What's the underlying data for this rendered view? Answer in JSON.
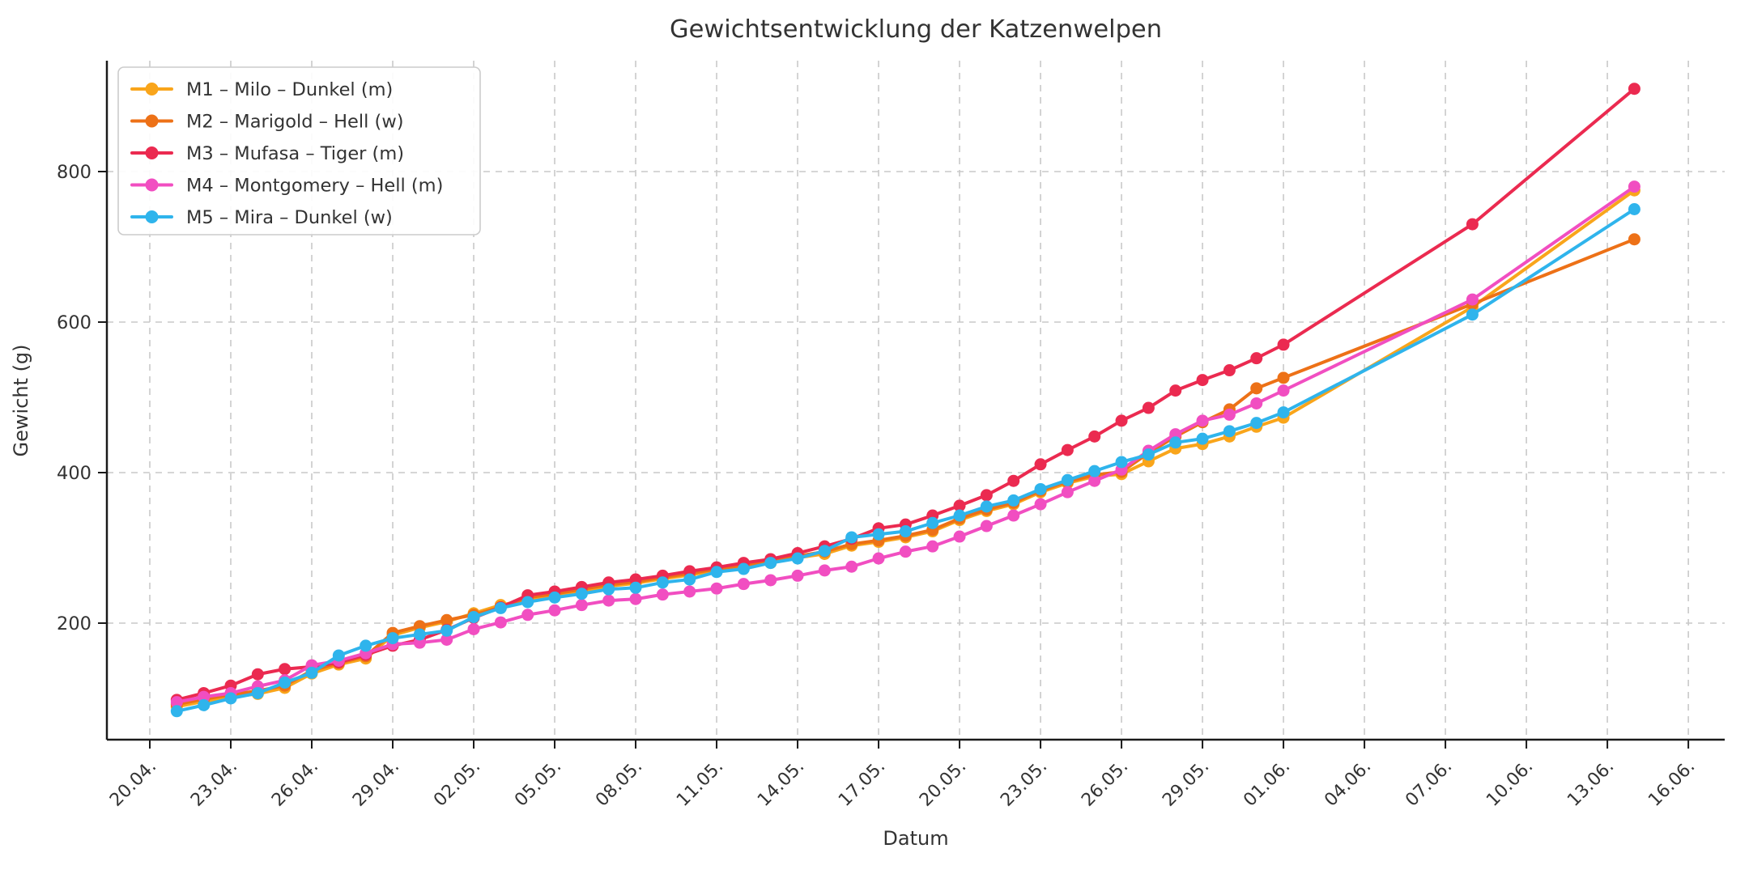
{
  "title": "Gewichtsentwicklung der Katzenwelpen",
  "xlabel": "Datum",
  "ylabel": "Gewicht (g)",
  "colors": {
    "background": "#ffffff",
    "grid": "#c9c9c9",
    "spine": "#1a1a1a",
    "tick_label": "#333333",
    "title": "#333333",
    "legend_border": "#cccccc",
    "legend_bg": "#ffffff"
  },
  "chart_data": {
    "type": "line",
    "title": "Gewichtsentwicklung der Katzenwelpen",
    "xlabel": "Datum",
    "ylabel": "Gewicht (g)",
    "grid": true,
    "grid_style": "dashed",
    "legend_position": "upper-left",
    "x_tick_labels": [
      "20.04.",
      "23.04.",
      "26.04.",
      "29.04.",
      "02.05.",
      "05.05.",
      "08.05.",
      "11.05.",
      "14.05.",
      "17.05.",
      "20.05.",
      "23.05.",
      "26.05.",
      "29.05.",
      "01.06.",
      "04.06.",
      "07.06.",
      "10.06.",
      "13.06.",
      "16.06."
    ],
    "x_tick_days": [
      0,
      3,
      6,
      9,
      12,
      15,
      18,
      21,
      24,
      27,
      30,
      33,
      36,
      39,
      42,
      45,
      48,
      51,
      54,
      57
    ],
    "y_ticks": [
      200,
      400,
      600,
      800
    ],
    "ylim": [
      45,
      947
    ],
    "xlim_days": [
      -1.6,
      58.4
    ],
    "point_dates": [
      "21.04.",
      "22.04.",
      "23.04.",
      "24.04.",
      "25.04.",
      "26.04.",
      "27.04.",
      "28.04.",
      "29.04.",
      "30.04.",
      "01.05.",
      "02.05.",
      "03.05.",
      "04.05.",
      "05.05.",
      "06.05.",
      "07.05.",
      "08.05.",
      "09.05.",
      "10.05.",
      "11.05.",
      "12.05.",
      "13.05.",
      "14.05.",
      "15.05.",
      "16.05.",
      "17.05.",
      "18.05.",
      "19.05.",
      "20.05.",
      "21.05.",
      "22.05.",
      "23.05.",
      "24.05.",
      "25.05.",
      "26.05.",
      "27.05.",
      "28.05.",
      "29.05.",
      "30.05.",
      "31.05.",
      "01.06.",
      "08.06.",
      "14.06."
    ],
    "point_day_offsets": [
      1,
      2,
      3,
      4,
      5,
      6,
      7,
      8,
      9,
      10,
      11,
      12,
      13,
      14,
      15,
      16,
      17,
      18,
      19,
      20,
      21,
      22,
      23,
      24,
      25,
      26,
      27,
      28,
      29,
      30,
      31,
      32,
      33,
      34,
      35,
      36,
      37,
      38,
      39,
      40,
      41,
      42,
      49,
      55
    ],
    "series": [
      {
        "id": "M1",
        "name": "M1 – Milo – Dunkel (m)",
        "color": "#F9A51B",
        "values": [
          89,
          96,
          102,
          106,
          114,
          133,
          145,
          153,
          184,
          194,
          202,
          213,
          224,
          231,
          237,
          243,
          249,
          253,
          259,
          264,
          270,
          275,
          280,
          287,
          292,
          303,
          308,
          314,
          322,
          337,
          349,
          358,
          374,
          386,
          395,
          398,
          415,
          432,
          438,
          448,
          461,
          473,
          620,
          775
        ]
      },
      {
        "id": "M2",
        "name": "M2 – Marigold – Hell (w)",
        "color": "#ED7117",
        "values": [
          92,
          99,
          105,
          110,
          117,
          137,
          147,
          156,
          187,
          196,
          204,
          211,
          221,
          234,
          239,
          245,
          251,
          255,
          261,
          266,
          272,
          277,
          282,
          289,
          295,
          305,
          310,
          316,
          324,
          339,
          351,
          360,
          376,
          388,
          397,
          401,
          426,
          448,
          467,
          484,
          512,
          526,
          624,
          710
        ]
      },
      {
        "id": "M3",
        "name": "M3 – Mufasa – Tiger (m)",
        "color": "#EB2A50",
        "values": [
          98,
          107,
          117,
          132,
          139,
          142,
          148,
          158,
          170,
          178,
          191,
          207,
          221,
          237,
          242,
          248,
          254,
          258,
          263,
          269,
          274,
          280,
          285,
          293,
          302,
          312,
          326,
          331,
          343,
          356,
          370,
          389,
          411,
          430,
          448,
          469,
          486,
          509,
          523,
          536,
          552,
          570,
          730,
          910
        ]
      },
      {
        "id": "M4",
        "name": "M4 – Montgomery – Hell (m)",
        "color": "#F14EC1",
        "values": [
          95,
          102,
          107,
          116,
          124,
          144,
          150,
          160,
          172,
          174,
          178,
          192,
          201,
          211,
          217,
          224,
          230,
          232,
          238,
          242,
          246,
          252,
          257,
          263,
          270,
          275,
          286,
          295,
          302,
          315,
          329,
          343,
          358,
          374,
          389,
          404,
          429,
          451,
          469,
          477,
          492,
          509,
          630,
          780
        ]
      },
      {
        "id": "M5",
        "name": "M5 – Mira – Dunkel (w)",
        "color": "#2FB4EC",
        "values": [
          83,
          91,
          100,
          107,
          121,
          134,
          157,
          170,
          180,
          185,
          190,
          208,
          220,
          228,
          234,
          239,
          245,
          247,
          254,
          258,
          268,
          272,
          280,
          286,
          296,
          314,
          318,
          322,
          333,
          343,
          355,
          363,
          378,
          390,
          402,
          414,
          424,
          440,
          445,
          455,
          466,
          480,
          610,
          750
        ]
      }
    ]
  }
}
